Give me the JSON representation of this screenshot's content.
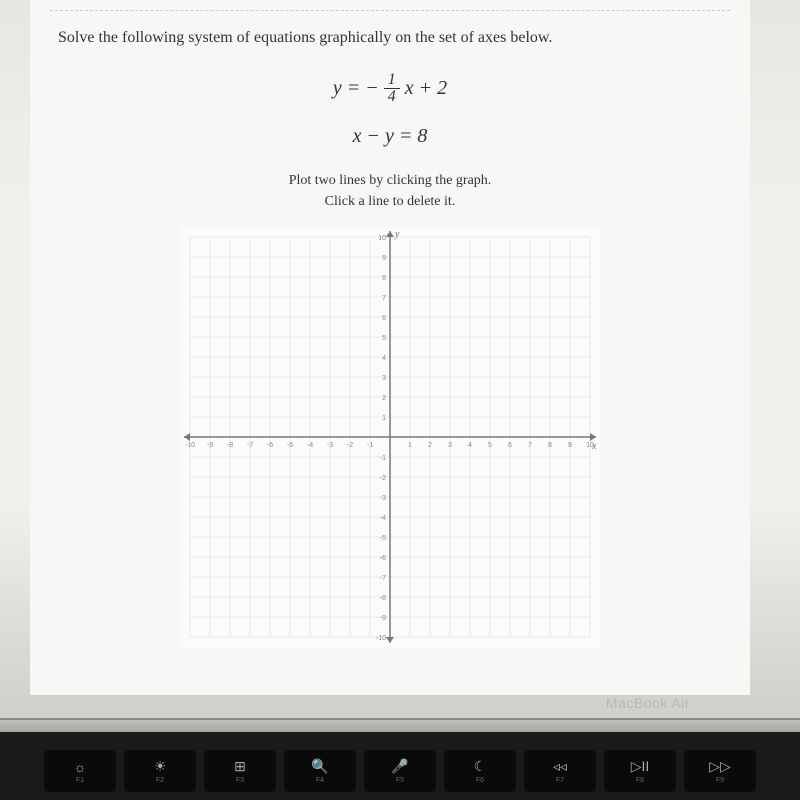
{
  "question": "Solve the following system of equations graphically on the set of axes below.",
  "eq1_prefix": "y = −",
  "eq1_frac_num": "1",
  "eq1_frac_den": "4",
  "eq1_suffix": "x + 2",
  "eq2": "x − y = 8",
  "instr_line1": "Plot two lines by clicking the graph.",
  "instr_line2": "Click a line to delete it.",
  "graph": {
    "size": 420,
    "xmin": -10,
    "xmax": 10,
    "ymin": -10,
    "ymax": 10,
    "tick_step": 1,
    "grid_color": "#e8e8e6",
    "axis_color": "#777777",
    "tick_label_color": "#888888",
    "tick_label_fontsize": 7,
    "background": "#fbfbfa",
    "x_label": "x",
    "y_label": "y",
    "x_ticks": [
      -10,
      -9,
      -8,
      -7,
      -6,
      -5,
      -4,
      -3,
      -2,
      -1,
      1,
      2,
      3,
      4,
      5,
      6,
      7,
      8,
      9,
      10
    ],
    "y_ticks": [
      -10,
      -9,
      -8,
      -7,
      -6,
      -5,
      -4,
      -3,
      -2,
      -1,
      1,
      2,
      3,
      4,
      5,
      6,
      7,
      8,
      9,
      10
    ]
  },
  "laptop_label": "MacBook Air",
  "keys": [
    {
      "glyph": "☼",
      "lbl": "F1"
    },
    {
      "glyph": "☀",
      "lbl": "F2"
    },
    {
      "glyph": "⊞",
      "lbl": "F3"
    },
    {
      "glyph": "🔍",
      "lbl": "F4"
    },
    {
      "glyph": "🎤",
      "lbl": "F5"
    },
    {
      "glyph": "☾",
      "lbl": "F6"
    },
    {
      "glyph": "◃◃",
      "lbl": "F7"
    },
    {
      "glyph": "▷II",
      "lbl": "F8"
    },
    {
      "glyph": "▷▷",
      "lbl": "F9"
    }
  ]
}
